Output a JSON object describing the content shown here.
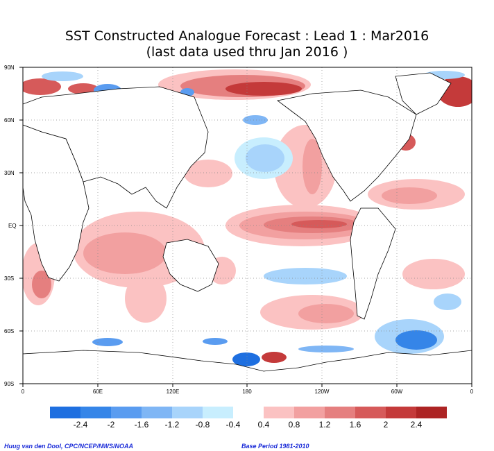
{
  "title": {
    "line1": "SST Constructed Analogue Forecast : Lead 1 : Mar2016",
    "line2": "(last data used thru Jan 2016 )"
  },
  "map": {
    "lat_labels": [
      "90N",
      "60N",
      "30N",
      "EQ",
      "30S",
      "60S",
      "90S"
    ],
    "lon_labels": [
      "0",
      "60E",
      "120E",
      "180",
      "120W",
      "60W",
      "0"
    ]
  },
  "colorbar": {
    "labels": [
      "-2.4",
      "-2",
      "-1.6",
      "-1.2",
      "-0.8",
      "-0.4",
      "0.4",
      "0.8",
      "1.2",
      "1.6",
      "2",
      "2.4"
    ],
    "colors": [
      "#1e6fe0",
      "#3585e8",
      "#5a9cf0",
      "#7fb6f5",
      "#a8d4fb",
      "#c8eefe",
      "#ffffff",
      "#fbc2c2",
      "#f2a0a0",
      "#e57f7f",
      "#d65a5a",
      "#c43a3a",
      "#ad2424"
    ]
  },
  "footer": {
    "credit": "Huug van den Dool, CPC/NCEP/NWS/NOAA",
    "base_period": "Base Period 1981-2010"
  }
}
